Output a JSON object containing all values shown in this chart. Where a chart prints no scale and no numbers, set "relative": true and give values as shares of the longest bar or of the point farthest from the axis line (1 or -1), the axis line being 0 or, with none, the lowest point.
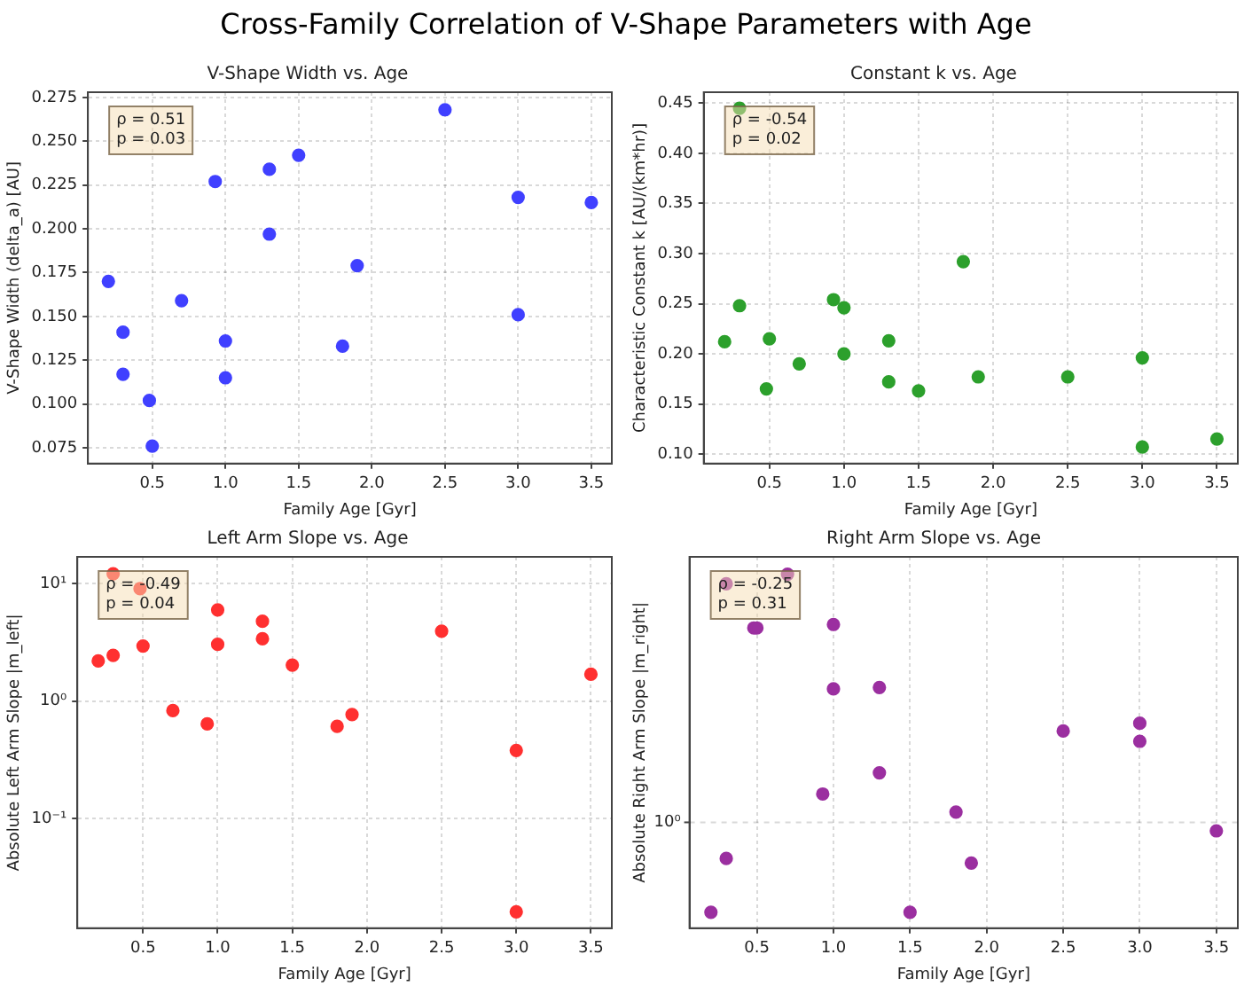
{
  "chart_data": [
    {
      "type": "other",
      "title": "Cross-Family Correlation of V-Shape Parameters with Age"
    },
    {
      "type": "scatter",
      "title": "V-Shape Width vs. Age",
      "xlabel": "Family Age [Gyr]",
      "ylabel": "V-Shape Width (delta_a) [AU]",
      "annotations": [
        "ρ = 0.51\np = 0.03"
      ],
      "grid": true,
      "marker": "circle",
      "xlim": [
        0.06,
        3.64
      ],
      "xticks": [
        0.5,
        {
          "value": 1,
          "label": "1.0"
        },
        1.5,
        {
          "value": 2,
          "label": "2.0"
        },
        2.5,
        {
          "value": 3,
          "label": "3.0"
        },
        3.5
      ],
      "ylim": [
        0.066,
        0.278
      ],
      "yticks": [
        {
          "value": 0.075,
          "label": "0.075"
        },
        {
          "value": 0.1,
          "label": "0.100"
        },
        {
          "value": 0.125,
          "label": "0.125"
        },
        {
          "value": 0.15,
          "label": "0.150"
        },
        {
          "value": 0.175,
          "label": "0.175"
        },
        {
          "value": 0.2,
          "label": "0.200"
        },
        {
          "value": 0.225,
          "label": "0.225"
        },
        {
          "value": 0.25,
          "label": "0.250"
        },
        {
          "value": 0.275,
          "label": "0.275"
        }
      ],
      "series": [
        {
          "color": "#4040ff",
          "x": [
            0.2,
            0.3,
            0.3,
            0.48,
            0.5,
            0.7,
            0.93,
            1.0,
            1.0,
            1.3,
            1.3,
            1.5,
            1.8,
            1.9,
            2.5,
            3.0,
            3.0,
            3.5
          ],
          "values": [
            0.17,
            0.141,
            0.117,
            0.102,
            0.076,
            0.159,
            0.227,
            0.136,
            0.115,
            0.234,
            0.197,
            0.242,
            0.133,
            0.179,
            0.268,
            0.218,
            0.151,
            0.215
          ]
        }
      ]
    },
    {
      "type": "scatter",
      "title": "Constant k vs. Age",
      "xlabel": "Family Age [Gyr]",
      "ylabel": "Characteristic Constant k [AU/(km*hr)]",
      "annotations": [
        "ρ = -0.54\np = 0.02"
      ],
      "grid": true,
      "marker": "circle",
      "xlim": [
        0.06,
        3.64
      ],
      "xticks": [
        0.5,
        {
          "value": 1,
          "label": "1.0"
        },
        1.5,
        {
          "value": 2,
          "label": "2.0"
        },
        2.5,
        {
          "value": 3,
          "label": "3.0"
        },
        3.5
      ],
      "ylim": [
        0.0905,
        0.461
      ],
      "yticks": [
        {
          "value": 0.1,
          "label": "0.10"
        },
        {
          "value": 0.15,
          "label": "0.15"
        },
        {
          "value": 0.2,
          "label": "0.20"
        },
        {
          "value": 0.25,
          "label": "0.25"
        },
        {
          "value": 0.3,
          "label": "0.30"
        },
        {
          "value": 0.35,
          "label": "0.35"
        },
        {
          "value": 0.4,
          "label": "0.40"
        },
        {
          "value": 0.45,
          "label": "0.45"
        }
      ],
      "series": [
        {
          "color": "#2ca02c",
          "x": [
            0.2,
            0.3,
            0.3,
            0.48,
            0.5,
            0.7,
            0.93,
            1.0,
            1.0,
            1.3,
            1.3,
            1.5,
            1.8,
            1.9,
            2.5,
            3.0,
            3.0,
            3.5
          ],
          "values": [
            0.212,
            0.248,
            0.445,
            0.165,
            0.215,
            0.19,
            0.254,
            0.246,
            0.2,
            0.213,
            0.172,
            0.163,
            0.292,
            0.177,
            0.177,
            0.196,
            0.107,
            0.115
          ]
        }
      ]
    },
    {
      "type": "scatter",
      "title": "Left Arm Slope vs. Age",
      "xlabel": "Family Age [Gyr]",
      "ylabel": "Absolute Left Arm Slope |m_left|",
      "annotations": [
        "ρ = -0.49\np = 0.04"
      ],
      "grid": true,
      "marker": "circle",
      "log": "y",
      "xlim": [
        0.06,
        3.64
      ],
      "xticks": [
        0.5,
        {
          "value": 1,
          "label": "1.0"
        },
        1.5,
        {
          "value": 2,
          "label": "2.0"
        },
        2.5,
        {
          "value": 3,
          "label": "3.0"
        },
        3.5
      ],
      "ylim": [
        0.0116,
        17
      ],
      "yticks": [
        {
          "value": 0.1,
          "label": "10⁻¹"
        },
        {
          "value": 1,
          "label": "10⁰"
        },
        {
          "value": 10,
          "label": "10¹"
        }
      ],
      "series": [
        {
          "color": "#ff3030",
          "x": [
            0.2,
            0.3,
            0.3,
            0.48,
            0.5,
            0.7,
            0.93,
            1.0,
            1.0,
            1.3,
            1.3,
            1.5,
            1.8,
            1.9,
            2.5,
            3.0,
            3.0,
            3.5
          ],
          "values": [
            2.2,
            2.46,
            12.2,
            9.1,
            2.95,
            0.83,
            0.64,
            6.0,
            3.05,
            4.8,
            3.4,
            2.03,
            0.61,
            0.77,
            3.95,
            0.38,
            0.016,
            1.7
          ]
        }
      ]
    },
    {
      "type": "scatter",
      "title": "Right Arm Slope vs. Age",
      "xlabel": "Family Age [Gyr]",
      "ylabel": "Absolute Right Arm Slope |m_right|",
      "annotations": [
        "ρ = -0.25\np = 0.31",
        "10⁰"
      ],
      "grid": true,
      "marker": "circle",
      "relative": true,
      "xlim": [
        0.06,
        3.64
      ],
      "xticks": [
        0.5,
        {
          "value": 1,
          "label": "1.0"
        },
        1.5,
        {
          "value": 2,
          "label": "2.0"
        },
        2.5,
        {
          "value": 3,
          "label": "3.0"
        },
        3.5
      ],
      "series": [
        {
          "color": "#9b2fa0",
          "x": [
            0.2,
            0.3,
            0.3,
            0.48,
            0.5,
            0.7,
            0.93,
            1.0,
            1.0,
            1.3,
            1.3,
            1.5,
            1.8,
            1.9,
            2.5,
            3.0,
            3.0,
            3.5
          ],
          "values": [
            0.045,
            0.197,
            0.973,
            0.848,
            0.848,
            1,
            0.379,
            0.858,
            0.676,
            0.68,
            0.439,
            0.045,
            0.328,
            0.184,
            0.557,
            0.579,
            0.528,
            0.275
          ]
        }
      ]
    }
  ]
}
